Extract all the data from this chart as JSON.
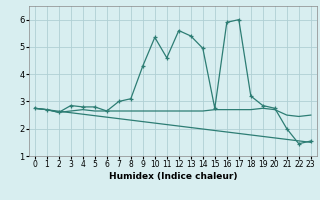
{
  "xlabel": "Humidex (Indice chaleur)",
  "xlim": [
    -0.5,
    23.5
  ],
  "ylim": [
    1,
    6.5
  ],
  "yticks": [
    1,
    2,
    3,
    4,
    5,
    6
  ],
  "xticks": [
    0,
    1,
    2,
    3,
    4,
    5,
    6,
    7,
    8,
    9,
    10,
    11,
    12,
    13,
    14,
    15,
    16,
    17,
    18,
    19,
    20,
    21,
    22,
    23
  ],
  "bg_color": "#d8eef0",
  "grid_color": "#b0d0d4",
  "line_color": "#2d7d74",
  "series1": {
    "x": [
      0,
      1,
      2,
      3,
      4,
      5,
      6,
      7,
      8,
      9,
      10,
      11,
      12,
      13,
      14,
      15,
      16,
      17,
      18,
      19,
      20,
      21,
      22,
      23
    ],
    "y": [
      2.75,
      2.7,
      2.6,
      2.85,
      2.8,
      2.8,
      2.65,
      3.0,
      3.1,
      4.3,
      5.35,
      4.6,
      5.6,
      5.4,
      4.95,
      2.75,
      5.9,
      6.0,
      3.2,
      2.85,
      2.75,
      2.0,
      1.45,
      1.55
    ]
  },
  "series2": {
    "x": [
      0,
      1,
      2,
      3,
      4,
      5,
      6,
      7,
      8,
      9,
      10,
      11,
      12,
      13,
      14,
      15,
      16,
      17,
      18,
      19,
      20,
      21,
      22,
      23
    ],
    "y": [
      2.75,
      2.7,
      2.6,
      2.65,
      2.7,
      2.65,
      2.65,
      2.65,
      2.65,
      2.65,
      2.65,
      2.65,
      2.65,
      2.65,
      2.65,
      2.7,
      2.7,
      2.7,
      2.7,
      2.75,
      2.7,
      2.5,
      2.45,
      2.5
    ]
  },
  "series3": {
    "x": [
      0,
      23
    ],
    "y": [
      2.75,
      1.5
    ]
  }
}
